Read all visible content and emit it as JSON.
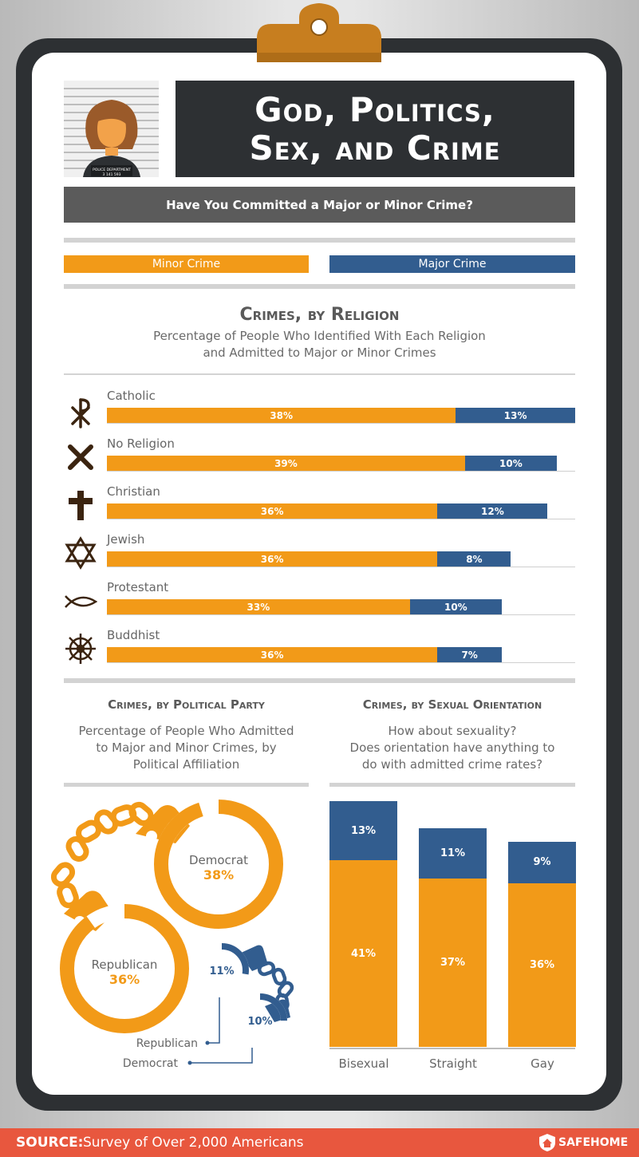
{
  "title_line1": "God, Politics,",
  "title_line2": "Sex, and Crime",
  "question": "Have You Committed a Major or Minor Crime?",
  "legend": {
    "minor": "Minor Crime",
    "major": "Major Crime"
  },
  "mugshot": {
    "plate_line1": "POLICE DEPARTMENT",
    "plate_line2": "3 141 593"
  },
  "religion": {
    "title": "Crimes, by Religion",
    "subtitle1": "Percentage of People Who Identified With Each Religion",
    "subtitle2": "and Admitted to Major or Minor Crimes"
  },
  "political": {
    "title": "Crimes, by Political Party",
    "subtitle1": "Percentage of People Who Admitted",
    "subtitle2": "to Major and Minor Crimes, by",
    "subtitle3": "Political Affiliation",
    "democrat_label": "Democrat",
    "republican_label": "Republican"
  },
  "sexual": {
    "title": "Crimes, by Sexual Orientation",
    "subtitle1": "How about sexuality?",
    "subtitle2": "Does orientation have anything to",
    "subtitle3": "do with admitted crime rates?"
  },
  "source": {
    "label": "SOURCE:",
    "text": "Survey of Over 2,000 Americans"
  },
  "brand": "SAFEHOME",
  "colors": {
    "minor": "#f29a18",
    "major": "#325d8f",
    "dark": "#2d3033",
    "source": "#e8573e"
  },
  "chart_data": [
    {
      "type": "bar",
      "orientation": "horizontal-stacked",
      "title": "Crimes, by Religion",
      "categories": [
        "Catholic",
        "No Religion",
        "Christian",
        "Jewish",
        "Protestant",
        "Buddhist"
      ],
      "icons": [
        "chi-rho-icon",
        "x-icon",
        "cross-icon",
        "star-of-david-icon",
        "ichthys-icon",
        "dharma-wheel-icon"
      ],
      "series": [
        {
          "name": "Minor Crime",
          "values": [
            38,
            39,
            36,
            36,
            33,
            36
          ],
          "labels": [
            "38%",
            "39%",
            "36%",
            "36%",
            "33%",
            "36%"
          ]
        },
        {
          "name": "Major Crime",
          "values": [
            13,
            10,
            12,
            8,
            10,
            7
          ],
          "labels": [
            "13%",
            "10%",
            "12%",
            "8%",
            "10%",
            "7%"
          ]
        }
      ]
    },
    {
      "type": "pie",
      "title": "Crimes, by Political Party",
      "categories": [
        "Democrat",
        "Republican"
      ],
      "series": [
        {
          "name": "Minor Crime",
          "values": [
            38,
            36
          ],
          "labels": [
            "38%",
            "36%"
          ]
        },
        {
          "name": "Major Crime",
          "values": [
            10,
            11
          ],
          "labels": [
            "10%",
            "11%"
          ]
        }
      ]
    },
    {
      "type": "bar",
      "orientation": "vertical-stacked",
      "title": "Crimes, by Sexual Orientation",
      "categories": [
        "Bisexual",
        "Straight",
        "Gay"
      ],
      "series": [
        {
          "name": "Minor Crime",
          "values": [
            41,
            37,
            36
          ],
          "labels": [
            "41%",
            "37%",
            "36%"
          ]
        },
        {
          "name": "Major Crime",
          "values": [
            13,
            11,
            9
          ],
          "labels": [
            "13%",
            "11%",
            "9%"
          ]
        }
      ]
    }
  ]
}
